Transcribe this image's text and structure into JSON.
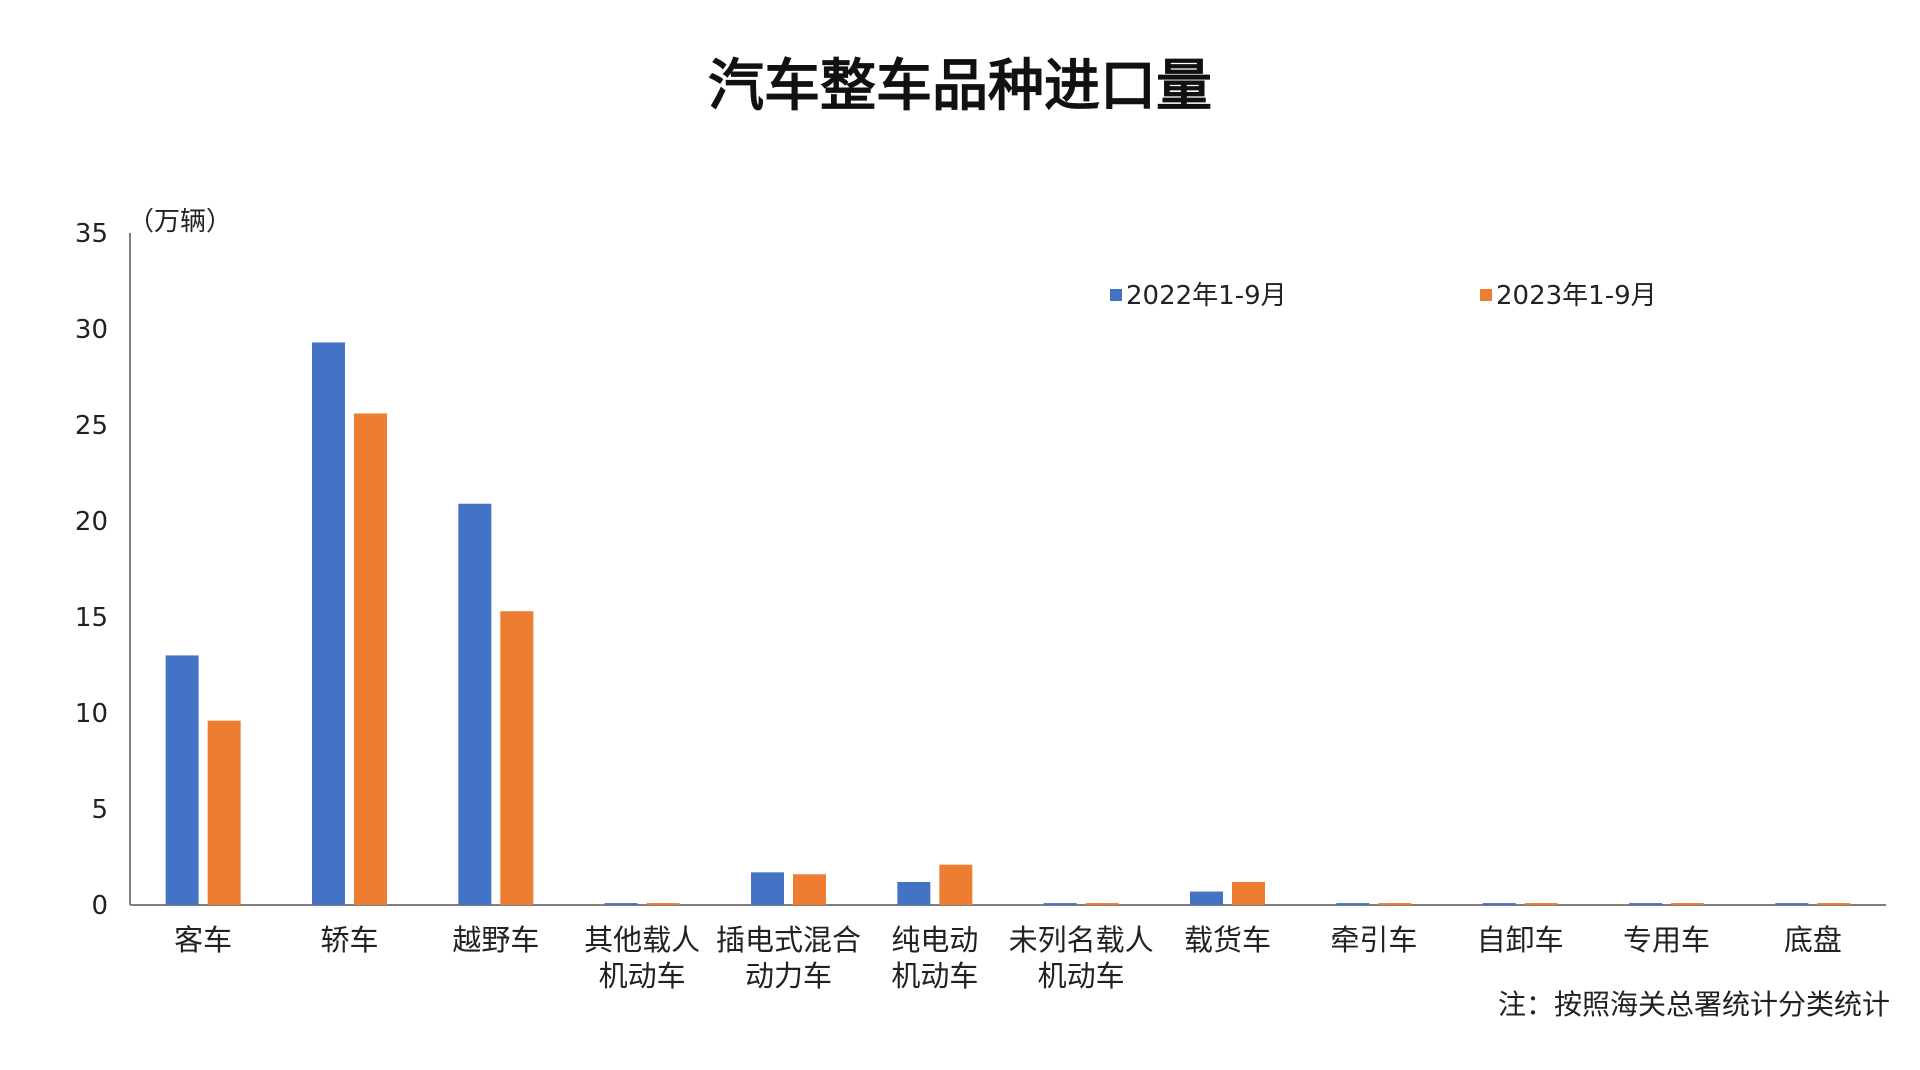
{
  "chart_data": {
    "type": "bar",
    "title": "汽车整车品种进口量",
    "unit_label": "（万辆）",
    "note": "注：按照海关总署统计分类统计",
    "ylim": [
      0,
      35
    ],
    "yticks": [
      "0",
      "5",
      "10",
      "15",
      "20",
      "25",
      "30",
      "35"
    ],
    "categories": [
      [
        "客车"
      ],
      [
        "轿车"
      ],
      [
        "越野车"
      ],
      [
        "其他载人",
        "机动车"
      ],
      [
        "插电式混合",
        "动力车"
      ],
      [
        "纯电动",
        "机动车"
      ],
      [
        "未列名载人",
        "机动车"
      ],
      [
        "载货车"
      ],
      [
        "牵引车"
      ],
      [
        "自卸车"
      ],
      [
        "专用车"
      ],
      [
        "底盘"
      ]
    ],
    "series": [
      {
        "name": "2022年1-9月",
        "color": "#4472C4",
        "values": [
          13.0,
          29.3,
          20.9,
          0.1,
          1.7,
          1.2,
          0.1,
          0.7,
          0.1,
          0.1,
          0.1,
          0.1
        ]
      },
      {
        "name": "2023年1-9月",
        "color": "#ED7D31",
        "values": [
          9.6,
          25.6,
          15.3,
          0.1,
          1.6,
          2.1,
          0.1,
          1.2,
          0.1,
          0.1,
          0.1,
          0.1
        ]
      }
    ],
    "legend_position": "top-right",
    "grid": false
  }
}
